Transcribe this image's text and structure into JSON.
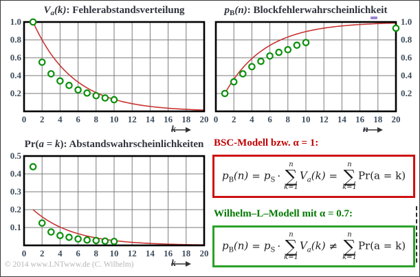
{
  "figure": {
    "copyright": "© 2014 www.LNTwww.de (C. Wilhelm)",
    "colors": {
      "curve_red": "#c83232",
      "marker_green": "#0b8f0b",
      "grid": "#7a7a7a",
      "frame": "#000000",
      "tick_label": "#3e4d5c",
      "title": "#2f333c",
      "bsc_red": "#cc1111",
      "wilhelm_green": "#2aa12a",
      "copyright_gray": "#b6b6b6"
    }
  },
  "chart_data": [
    {
      "type": "scatter",
      "title": [
        {
          "t": "V",
          "s": "it"
        },
        {
          "t": "a",
          "s": "subit"
        },
        {
          "t": "(k)",
          "s": "it"
        },
        {
          "t": ": Fehlerabstandsverteilung",
          "s": "rm"
        }
      ],
      "xlabel": "k",
      "xlim": [
        0,
        20
      ],
      "ylim": [
        0,
        1.0
      ],
      "x_ticks": [
        0,
        2,
        4,
        6,
        8,
        10,
        12,
        14,
        16,
        18,
        20
      ],
      "y_ticks": [
        0.2,
        0.4,
        0.6,
        0.8,
        1.0
      ],
      "points": {
        "x": [
          1,
          2,
          3,
          4,
          5,
          6,
          7,
          8,
          9,
          10
        ],
        "y": [
          1.0,
          0.55,
          0.42,
          0.34,
          0.29,
          0.24,
          0.205,
          0.175,
          0.15,
          0.13
        ]
      },
      "curve": {
        "kind": "decay",
        "scale": 1,
        "base": 0.8,
        "x_from": 1,
        "x_to": 20
      }
    },
    {
      "type": "scatter",
      "title": [
        {
          "t": "p",
          "s": "it"
        },
        {
          "t": "B",
          "s": "subrm"
        },
        {
          "t": "(n)",
          "s": "it"
        },
        {
          "t": ": Blockfehlerwahrscheinlichkeit",
          "s": "rm"
        }
      ],
      "xlabel": "n",
      "xlim": [
        0,
        20
      ],
      "ylim": [
        0,
        1.0
      ],
      "x_ticks": [
        0,
        2,
        4,
        6,
        8,
        10,
        12,
        14,
        16,
        18,
        20
      ],
      "y_ticks": [
        0.2,
        0.4,
        0.6,
        0.8,
        1.0
      ],
      "points": {
        "x": [
          1,
          2,
          3,
          4,
          5,
          6,
          7,
          8,
          9,
          10,
          20
        ],
        "y": [
          0.2,
          0.33,
          0.42,
          0.5,
          0.56,
          0.62,
          0.66,
          0.69,
          0.74,
          0.77,
          0.93
        ]
      },
      "curve": {
        "kind": "saturate",
        "base": 0.8,
        "x_from": 1,
        "x_to": 20
      }
    },
    {
      "type": "scatter",
      "title": [
        {
          "t": "Pr(",
          "s": "rm"
        },
        {
          "t": "a",
          "s": "it"
        },
        {
          "t": " = ",
          "s": "rm"
        },
        {
          "t": "k",
          "s": "it"
        },
        {
          "t": "): Abstandswahrscheinlichkeiten",
          "s": "rm"
        }
      ],
      "xlabel": "k",
      "xlim": [
        0,
        20
      ],
      "ylim": [
        0,
        0.5
      ],
      "x_ticks": [
        0,
        2,
        4,
        6,
        8,
        10,
        12,
        14,
        16,
        18,
        20
      ],
      "y_ticks": [
        0.1,
        0.2,
        0.3,
        0.4,
        0.5
      ],
      "points": {
        "x": [
          1,
          2,
          3,
          4,
          5,
          6,
          7,
          8,
          9,
          10
        ],
        "y": [
          0.44,
          0.125,
          0.075,
          0.055,
          0.045,
          0.036,
          0.03,
          0.027,
          0.024,
          0.022
        ]
      },
      "curve": {
        "kind": "decay",
        "scale": 0.2,
        "base": 0.8,
        "x_from": 1,
        "x_to": 20
      }
    }
  ],
  "formulas": {
    "bsc": {
      "heading": "BSC-Modell bzw. α = 1:",
      "relation": "="
    },
    "wilhelm": {
      "heading": "Wilhelm–L–Modell mit α = 0.7:",
      "relation": "≠"
    },
    "shared": {
      "lhs_base": "p",
      "lhs_sub": "B",
      "lhs_arg": "(n)",
      "eq": "=",
      "rhs_base": "p",
      "rhs_sub": "S",
      "cdot": "·",
      "sigma": "∑",
      "sum_sup": "n",
      "sum_sub": "k=1",
      "t1_base": "V",
      "t1_sub": "a",
      "t1_arg": "(k)",
      "t2": "Pr(a = k)"
    }
  }
}
